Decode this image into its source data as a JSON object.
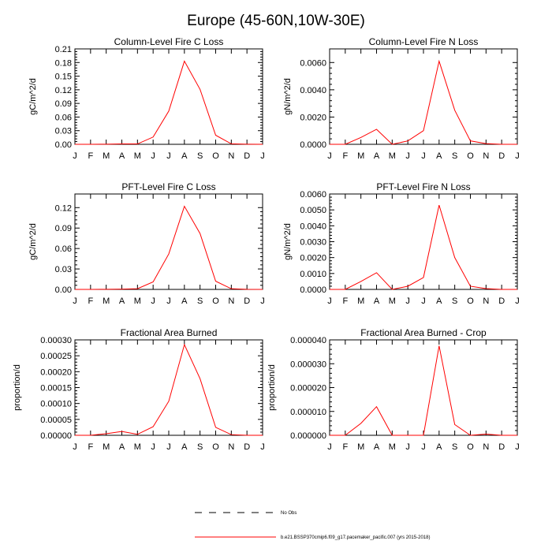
{
  "figure": {
    "title": "Europe (45-60N,10W-30E)"
  },
  "colors": {
    "series": "#ff0000",
    "axes": "#000000",
    "obs": "#000000"
  },
  "legend": [
    {
      "label": "No Obs",
      "style": "dashed",
      "color": "#000000"
    },
    {
      "label": "b.e21.BSSP370cmip6.f09_g17.pacemaker_pacific.007 (yrs 2015-2018)",
      "style": "solid",
      "color": "#ff0000"
    }
  ],
  "chart_data": [
    {
      "type": "line",
      "title": "Column-Level Fire C Loss",
      "xlabel": "",
      "ylabel": "gC/m^2/d",
      "categories": [
        "J",
        "F",
        "M",
        "A",
        "M",
        "J",
        "J",
        "A",
        "S",
        "O",
        "N",
        "D",
        "J"
      ],
      "ylim": [
        0,
        0.21
      ],
      "yticks": [
        "0.00",
        "0.03",
        "0.06",
        "0.09",
        "0.12",
        "0.15",
        "0.18",
        "0.21"
      ],
      "series": [
        {
          "name": "b.e21.BSSP370cmip6.f09_g17.pacemaker_pacific.007 (yrs 2015-2018)",
          "values": [
            0.0,
            0.0,
            0.0003,
            0.0008,
            0.0008,
            0.016,
            0.073,
            0.183,
            0.121,
            0.02,
            0.001,
            0.0002,
            0.0
          ]
        }
      ]
    },
    {
      "type": "line",
      "title": "Column-Level Fire N Loss",
      "xlabel": "",
      "ylabel": "gN/m^2/d",
      "categories": [
        "J",
        "F",
        "M",
        "A",
        "M",
        "J",
        "J",
        "A",
        "S",
        "O",
        "N",
        "D",
        "J"
      ],
      "ylim": [
        0,
        0.007
      ],
      "yticks": [
        "0.0000",
        "0.0020",
        "0.0040",
        "0.0060"
      ],
      "series": [
        {
          "name": "b.e21.BSSP370cmip6.f09_g17.pacemaker_pacific.007 (yrs 2015-2018)",
          "values": [
            0.0,
            0.0,
            0.0005,
            0.0011,
            0.0,
            0.00025,
            0.001,
            0.0061,
            0.0025,
            0.00025,
            5e-05,
            0.0,
            0.0
          ]
        }
      ]
    },
    {
      "type": "line",
      "title": "PFT-Level Fire C Loss",
      "xlabel": "",
      "ylabel": "gC/m^2/d",
      "categories": [
        "J",
        "F",
        "M",
        "A",
        "M",
        "J",
        "J",
        "A",
        "S",
        "O",
        "N",
        "D",
        "J"
      ],
      "ylim": [
        0,
        0.14
      ],
      "yticks": [
        "0.00",
        "0.03",
        "0.06",
        "0.09",
        "0.12"
      ],
      "series": [
        {
          "name": "b.e21.BSSP370cmip6.f09_g17.pacemaker_pacific.007 (yrs 2015-2018)",
          "values": [
            0.0,
            0.0,
            0.0002,
            0.0005,
            0.001,
            0.011,
            0.052,
            0.122,
            0.082,
            0.012,
            0.001,
            0.0001,
            0.0
          ]
        }
      ]
    },
    {
      "type": "line",
      "title": "PFT-Level Fire N Loss",
      "xlabel": "",
      "ylabel": "gN/m^2/d",
      "categories": [
        "J",
        "F",
        "M",
        "A",
        "M",
        "J",
        "J",
        "A",
        "S",
        "O",
        "N",
        "D",
        "J"
      ],
      "ylim": [
        0,
        0.006
      ],
      "yticks": [
        "0.0000",
        "0.0010",
        "0.0020",
        "0.0030",
        "0.0040",
        "0.0050",
        "0.0060"
      ],
      "series": [
        {
          "name": "b.e21.BSSP370cmip6.f09_g17.pacemaker_pacific.007 (yrs 2015-2018)",
          "values": [
            0.0,
            0.0,
            0.0005,
            0.00105,
            0.0,
            0.0002,
            0.00075,
            0.0053,
            0.002,
            0.0002,
            5e-05,
            0.0,
            0.0
          ]
        }
      ]
    },
    {
      "type": "line",
      "title": "Fractional Area Burned",
      "xlabel": "",
      "ylabel": "proportion/d",
      "categories": [
        "J",
        "F",
        "M",
        "A",
        "M",
        "J",
        "J",
        "A",
        "S",
        "O",
        "N",
        "D",
        "J"
      ],
      "ylim": [
        0,
        0.0003
      ],
      "yticks": [
        "0.00000",
        "0.00005",
        "0.00010",
        "0.00015",
        "0.00020",
        "0.00025",
        "0.00030"
      ],
      "series": [
        {
          "name": "b.e21.BSSP370cmip6.f09_g17.pacemaker_pacific.007 (yrs 2015-2018)",
          "values": [
            0.0,
            0.0,
            5e-06,
            1.2e-05,
            3e-06,
            2.7e-05,
            0.000107,
            0.000285,
            0.000178,
            2.5e-05,
            2e-06,
            0.0,
            0.0
          ]
        }
      ]
    },
    {
      "type": "line",
      "title": "Fractional Area Burned - Crop",
      "xlabel": "",
      "ylabel": "proportion/d",
      "categories": [
        "J",
        "F",
        "M",
        "A",
        "M",
        "J",
        "J",
        "A",
        "S",
        "O",
        "N",
        "D",
        "J"
      ],
      "ylim": [
        0,
        4e-05
      ],
      "yticks": [
        "0.000000",
        "0.000010",
        "0.000020",
        "0.000030",
        "0.000040"
      ],
      "series": [
        {
          "name": "b.e21.BSSP370cmip6.f09_g17.pacemaker_pacific.007 (yrs 2015-2018)",
          "values": [
            0.0,
            0.0,
            5e-06,
            1.2e-05,
            0.0,
            0.0,
            0.0,
            3.75e-05,
            4.5e-06,
            0.0,
            5e-07,
            0.0,
            0.0
          ]
        }
      ]
    }
  ]
}
